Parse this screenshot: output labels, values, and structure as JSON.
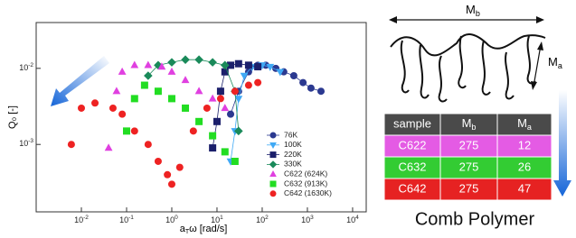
{
  "chart_data": {
    "type": "scatter",
    "y_label": "Q₀ [-]",
    "x_label": {
      "base": "a",
      "sub": "T",
      "rest": "ω [rad/s]"
    },
    "log_x": true,
    "log_y": true,
    "xlim": [
      0.001,
      20000
    ],
    "ylim": [
      0.00013,
      0.04
    ],
    "xticks": [
      {
        "value": 0.01,
        "label": "10",
        "sup": "-2"
      },
      {
        "value": 0.1,
        "label": "10",
        "sup": "-1"
      },
      {
        "value": 1,
        "label": "10",
        "sup": "0"
      },
      {
        "value": 10,
        "label": "10",
        "sup": "1"
      },
      {
        "value": 100,
        "label": "10",
        "sup": "2"
      },
      {
        "value": 1000,
        "label": "10",
        "sup": "3"
      },
      {
        "value": 10000,
        "label": "10",
        "sup": "4"
      }
    ],
    "yticks": [
      {
        "value": 0.01,
        "label": "10",
        "sup": "-2"
      },
      {
        "value": 0.001,
        "label": "10",
        "sup": "-3"
      }
    ],
    "legend": "lower-right",
    "series": [
      {
        "name": "76K",
        "color": "#2b3990",
        "marker": "circle",
        "line": true,
        "x": [
          20,
          30,
          50,
          80,
          120,
          200,
          300,
          500,
          800,
          1200,
          2000
        ],
        "values": [
          0.0025,
          0.005,
          0.009,
          0.011,
          0.011,
          0.01,
          0.009,
          0.008,
          0.0065,
          0.0055,
          0.005
        ]
      },
      {
        "name": "100K",
        "color": "#3fa9f5",
        "marker": "triangle-down",
        "line": true,
        "x": [
          20,
          25,
          30,
          40,
          60,
          100,
          150,
          250
        ],
        "values": [
          0.0006,
          0.0015,
          0.004,
          0.008,
          0.0105,
          0.011,
          0.0105,
          0.009
        ]
      },
      {
        "name": "220K",
        "color": "#1b1f6b",
        "marker": "square",
        "line": true,
        "x": [
          8,
          10,
          12,
          15,
          20,
          30,
          50,
          80
        ],
        "values": [
          0.0009,
          0.002,
          0.005,
          0.009,
          0.011,
          0.0115,
          0.011,
          0.0105
        ]
      },
      {
        "name": "330K",
        "color": "#1a8a5a",
        "marker": "diamond",
        "line": true,
        "x": [
          0.3,
          0.5,
          1,
          2,
          4,
          8,
          15,
          25,
          30
        ],
        "values": [
          0.008,
          0.011,
          0.012,
          0.013,
          0.013,
          0.012,
          0.011,
          0.005,
          0.0015
        ]
      },
      {
        "name": "C622 (624K)",
        "color": "#e040e0",
        "marker": "triangle-up",
        "line": false,
        "x": [
          0.04,
          0.06,
          0.08,
          0.15,
          0.3,
          0.6,
          1,
          2,
          4,
          8,
          15
        ],
        "values": [
          0.0009,
          0.005,
          0.009,
          0.011,
          0.011,
          0.0105,
          0.009,
          0.007,
          0.005,
          0.004,
          0.003
        ]
      },
      {
        "name": "C632 (913K)",
        "color": "#22dd22",
        "marker": "square",
        "line": false,
        "x": [
          0.1,
          0.15,
          0.25,
          0.5,
          1,
          2,
          4,
          8,
          15,
          25
        ],
        "values": [
          0.0015,
          0.004,
          0.006,
          0.005,
          0.004,
          0.003,
          0.002,
          0.0013,
          0.0008,
          0.0006
        ]
      },
      {
        "name": "C642 (1630K)",
        "color": "#ee2222",
        "marker": "circle",
        "line": false,
        "x": [
          0.006,
          0.01,
          0.02,
          0.05,
          0.08,
          0.15,
          0.3,
          0.5,
          0.8,
          1,
          1.5,
          3,
          6,
          12,
          25,
          50,
          80
        ],
        "values": [
          0.001,
          0.003,
          0.0035,
          0.003,
          0.0025,
          0.0015,
          0.001,
          0.0006,
          0.0004,
          0.0003,
          0.0005,
          0.0015,
          0.003,
          0.004,
          0.005,
          0.006,
          0.0065
        ]
      }
    ]
  },
  "diagram": {
    "backbone": {
      "base": "M",
      "sub": "b"
    },
    "arm": {
      "base": "M",
      "sub": "a"
    },
    "caption": "Comb Polymer"
  },
  "table": {
    "header": [
      "sample",
      {
        "base": "M",
        "sub": "b"
      },
      {
        "base": "M",
        "sub": "a"
      }
    ],
    "rows": [
      [
        "C622",
        "275",
        "12"
      ],
      [
        "C632",
        "275",
        "26"
      ],
      [
        "C642",
        "275",
        "47"
      ]
    ]
  }
}
